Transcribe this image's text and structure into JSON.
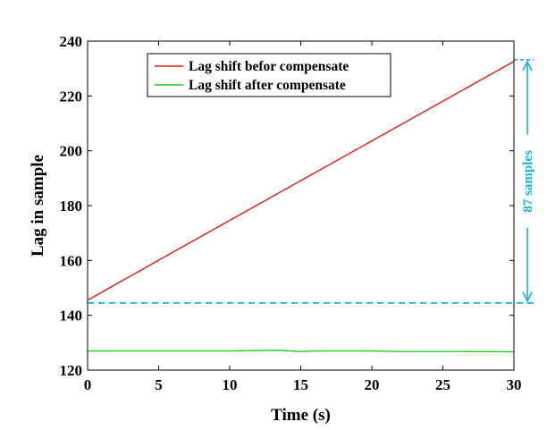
{
  "chart_data": {
    "type": "line",
    "title": "",
    "xlabel": "Time (s)",
    "ylabel": "Lag in sample",
    "xlim": [
      0,
      30
    ],
    "ylim": [
      120,
      240
    ],
    "xticks": [
      0,
      5,
      10,
      15,
      20,
      25,
      30
    ],
    "yticks": [
      120,
      140,
      160,
      180,
      200,
      220,
      240
    ],
    "grid": false,
    "legend_position": "top-center",
    "series": [
      {
        "name": "Lag shift befor compensate",
        "color": "#e8160f",
        "x": [
          0,
          5,
          10,
          15,
          20,
          25,
          30
        ],
        "y": [
          145.5,
          160.1,
          174.6,
          189.1,
          203.6,
          218.1,
          232.6
        ]
      },
      {
        "name": "Lag shift after compensate",
        "color": "#1ad11a",
        "x": [
          0,
          5,
          10,
          13.5,
          15,
          16,
          20,
          22,
          25,
          30
        ],
        "y": [
          127,
          127,
          127,
          127.2,
          126.8,
          127,
          127,
          126.8,
          126.8,
          126.7
        ]
      }
    ],
    "annotations": {
      "reference_line_y": 144.5,
      "reference_line_color": "#1ab0e0",
      "span_label": "87 samples",
      "span_from": 144.5,
      "span_to": 233.2,
      "span_color": "#1ab0e0"
    }
  }
}
